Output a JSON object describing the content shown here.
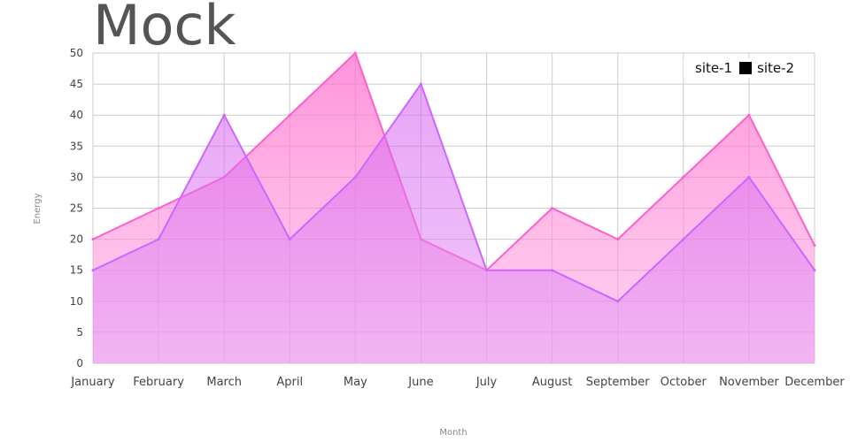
{
  "chart_data": {
    "type": "area",
    "title": "Mock",
    "xlabel": "Month",
    "ylabel": "Energy",
    "categories": [
      "January",
      "February",
      "March",
      "April",
      "May",
      "June",
      "July",
      "August",
      "September",
      "October",
      "November",
      "December"
    ],
    "ylim": [
      0,
      50
    ],
    "yticks": [
      0,
      5,
      10,
      15,
      20,
      25,
      30,
      35,
      40,
      45,
      50
    ],
    "grid": true,
    "legend_position": "top-right",
    "series": [
      {
        "name": "site-1",
        "values": [
          20,
          25,
          30,
          40,
          50,
          20,
          15,
          25,
          20,
          30,
          40,
          19
        ],
        "color": "#ff5fc9",
        "fill": "#ff6fcf"
      },
      {
        "name": "site-2",
        "values": [
          15,
          20,
          40,
          20,
          30,
          45,
          15,
          15,
          10,
          20,
          30,
          15
        ],
        "color": "#cc66ff",
        "fill": "#dd6ff0",
        "legend_swatch": "#000000"
      }
    ]
  }
}
